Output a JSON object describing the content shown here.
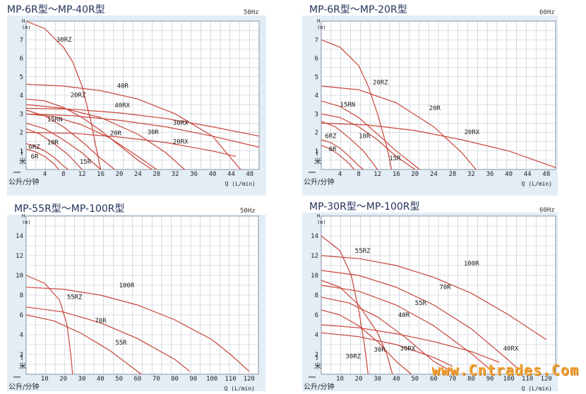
{
  "chart_data": [
    {
      "type": "line",
      "title": "MP-6R型～MP-40R型",
      "frequency": "50Hz",
      "ylabel": "H (m)",
      "ylabel_vertical": "米",
      "xlabel_left": "公升/分钟",
      "xlabel": "Q (L/min)",
      "xlim": [
        0,
        50
      ],
      "ylim": [
        0,
        8
      ],
      "xticks": [
        4,
        8,
        12,
        16,
        20,
        24,
        28,
        32,
        36,
        40,
        44,
        48
      ],
      "yticks": [
        1,
        2,
        3,
        4,
        5,
        6,
        7
      ],
      "grid": true,
      "series": [
        {
          "name": "30RZ",
          "x": [
            0,
            4,
            8,
            10,
            12,
            14,
            15,
            16
          ],
          "y": [
            8.0,
            7.6,
            6.6,
            5.8,
            4.5,
            2.5,
            1.2,
            0
          ]
        },
        {
          "name": "40R",
          "x": [
            0,
            8,
            16,
            24,
            32,
            40,
            46
          ],
          "y": [
            4.6,
            4.5,
            4.25,
            3.8,
            3.0,
            1.8,
            0
          ]
        },
        {
          "name": "40RX",
          "x": [
            0,
            10,
            20,
            30,
            40,
            50
          ],
          "y": [
            3.3,
            3.25,
            3.05,
            2.75,
            2.3,
            1.8
          ]
        },
        {
          "name": "30RX",
          "x": [
            0,
            10,
            20,
            30,
            40,
            50
          ],
          "y": [
            3.0,
            2.9,
            2.65,
            2.3,
            1.8,
            1.2
          ]
        },
        {
          "name": "30R",
          "x": [
            0,
            8,
            16,
            24,
            30,
            34
          ],
          "y": [
            3.5,
            3.3,
            2.8,
            1.9,
            0.9,
            0
          ]
        },
        {
          "name": "20RX",
          "x": [
            0,
            10,
            20,
            30,
            40,
            45
          ],
          "y": [
            2.0,
            1.95,
            1.75,
            1.45,
            1.0,
            0.7
          ]
        },
        {
          "name": "20RZ",
          "x": [
            0,
            4,
            8,
            12,
            16,
            20,
            24,
            27
          ],
          "y": [
            3.8,
            3.7,
            3.35,
            2.8,
            2.1,
            1.3,
            0.5,
            0
          ]
        },
        {
          "name": "20R",
          "x": [
            0,
            6,
            12,
            18,
            24,
            28
          ],
          "y": [
            3.0,
            2.85,
            2.4,
            1.7,
            0.7,
            0
          ]
        },
        {
          "name": "15RN",
          "x": [
            0,
            4,
            8,
            12,
            16,
            19
          ],
          "y": [
            3.2,
            2.9,
            2.3,
            1.5,
            0.6,
            0
          ]
        },
        {
          "name": "15R",
          "x": [
            0,
            4,
            8,
            12,
            16
          ],
          "y": [
            2.5,
            2.2,
            1.6,
            0.9,
            0
          ]
        },
        {
          "name": "10R",
          "x": [
            0,
            3,
            6,
            9,
            12
          ],
          "y": [
            2.2,
            1.9,
            1.4,
            0.8,
            0
          ]
        },
        {
          "name": "6RZ",
          "x": [
            0,
            2,
            4,
            6,
            8,
            9
          ],
          "y": [
            1.4,
            1.25,
            1.0,
            0.65,
            0.2,
            0
          ]
        },
        {
          "name": "6R",
          "x": [
            0,
            2,
            4,
            6,
            7
          ],
          "y": [
            1.1,
            0.95,
            0.7,
            0.3,
            0
          ]
        }
      ],
      "curve_labels": [
        {
          "text": "30RZ",
          "x": 6.5,
          "y": 6.9
        },
        {
          "text": "40R",
          "x": 19.5,
          "y": 4.4
        },
        {
          "text": "40RX",
          "x": 19,
          "y": 3.35
        },
        {
          "text": "20RZ",
          "x": 9.5,
          "y": 3.9
        },
        {
          "text": "15RN",
          "x": 4.5,
          "y": 2.6
        },
        {
          "text": "10R",
          "x": 4.5,
          "y": 1.35
        },
        {
          "text": "6RZ",
          "x": 0.5,
          "y": 1.1
        },
        {
          "text": "6R",
          "x": 1.0,
          "y": 0.6
        },
        {
          "text": "15R",
          "x": 11.5,
          "y": 0.3
        },
        {
          "text": "20R",
          "x": 18,
          "y": 1.85
        },
        {
          "text": "30R",
          "x": 26,
          "y": 1.9
        },
        {
          "text": "30RX",
          "x": 31.5,
          "y": 2.4
        },
        {
          "text": "20RX",
          "x": 31.5,
          "y": 1.4
        }
      ]
    },
    {
      "type": "line",
      "title": "MP-6R型～MP-20R型",
      "frequency": "60Hz",
      "ylabel": "H (m)",
      "ylabel_vertical": "米",
      "xlabel_left": "公升/分钟",
      "xlabel": "Q (L/min)",
      "xlim": [
        0,
        50
      ],
      "ylim": [
        0,
        8
      ],
      "xticks": [
        4,
        8,
        12,
        16,
        20,
        24,
        28,
        32,
        36,
        40,
        44,
        48
      ],
      "yticks": [
        1,
        2,
        3,
        4,
        5,
        6,
        7
      ],
      "grid": true,
      "series": [
        {
          "name": "20RZ",
          "x": [
            0,
            4,
            8,
            10,
            12,
            14,
            15
          ],
          "y": [
            7.0,
            6.6,
            5.6,
            4.5,
            3.0,
            1.2,
            0
          ]
        },
        {
          "name": "20R",
          "x": [
            0,
            8,
            16,
            24,
            30,
            33
          ],
          "y": [
            4.5,
            4.3,
            3.6,
            2.3,
            0.9,
            0
          ]
        },
        {
          "name": "20RX",
          "x": [
            0,
            10,
            20,
            30,
            40,
            50
          ],
          "y": [
            2.5,
            2.4,
            2.1,
            1.6,
            1.0,
            0.1
          ]
        },
        {
          "name": "15RN",
          "x": [
            0,
            4,
            8,
            12,
            16,
            21
          ],
          "y": [
            3.7,
            3.4,
            2.8,
            1.9,
            1.0,
            0
          ]
        },
        {
          "name": "15R",
          "x": [
            0,
            4,
            8,
            12,
            16,
            20
          ],
          "y": [
            3.0,
            2.8,
            2.3,
            1.6,
            0.7,
            0
          ]
        },
        {
          "name": "10R",
          "x": [
            0,
            3,
            6,
            9,
            12
          ],
          "y": [
            2.6,
            2.3,
            1.7,
            1.0,
            0
          ]
        },
        {
          "name": "6RZ",
          "x": [
            0,
            2,
            4,
            6,
            8,
            9
          ],
          "y": [
            1.6,
            1.45,
            1.15,
            0.7,
            0.2,
            0
          ]
        },
        {
          "name": "6R",
          "x": [
            0,
            2,
            4,
            6,
            7
          ],
          "y": [
            1.3,
            1.1,
            0.75,
            0.3,
            0
          ]
        }
      ],
      "curve_labels": [
        {
          "text": "20RZ",
          "x": 11,
          "y": 4.6
        },
        {
          "text": "20R",
          "x": 23,
          "y": 3.2
        },
        {
          "text": "20RX",
          "x": 30.5,
          "y": 1.9
        },
        {
          "text": "15RN",
          "x": 4,
          "y": 3.4
        },
        {
          "text": "10R",
          "x": 8,
          "y": 1.7
        },
        {
          "text": "15R",
          "x": 14.5,
          "y": 0.5
        },
        {
          "text": "6RZ",
          "x": 0.8,
          "y": 1.7
        },
        {
          "text": "6R",
          "x": 1.6,
          "y": 1.0
        }
      ]
    },
    {
      "type": "line",
      "title": "MP-55R型～MP-100R型",
      "frequency": "50Hz",
      "ylabel": "H (m)",
      "ylabel_vertical": "米",
      "xlabel_left": "公升/分钟",
      "xlabel": "Q (L/min)",
      "xlim": [
        0,
        125
      ],
      "ylim": [
        0,
        16
      ],
      "xticks": [
        10,
        20,
        30,
        40,
        50,
        60,
        70,
        80,
        90,
        100,
        110,
        120
      ],
      "yticks": [
        2,
        4,
        6,
        8,
        10,
        12,
        14
      ],
      "grid": true,
      "series": [
        {
          "name": "55RZ",
          "x": [
            0,
            10,
            18,
            22,
            24,
            25
          ],
          "y": [
            10.0,
            9.2,
            7.5,
            5.0,
            2.0,
            0
          ]
        },
        {
          "name": "100R",
          "x": [
            0,
            20,
            40,
            60,
            80,
            100,
            110,
            120
          ],
          "y": [
            8.8,
            8.6,
            8.0,
            7.0,
            5.5,
            3.5,
            2.0,
            0.3
          ]
        },
        {
          "name": "70R",
          "x": [
            0,
            20,
            40,
            60,
            80,
            88
          ],
          "y": [
            6.8,
            6.3,
            5.2,
            3.6,
            1.5,
            0.3
          ]
        },
        {
          "name": "55R",
          "x": [
            0,
            15,
            30,
            45,
            62
          ],
          "y": [
            6.0,
            5.4,
            4.1,
            2.4,
            0
          ]
        }
      ],
      "curve_labels": [
        {
          "text": "55RZ",
          "x": 22,
          "y": 7.6
        },
        {
          "text": "100R",
          "x": 50,
          "y": 8.8
        },
        {
          "text": "70R",
          "x": 37,
          "y": 5.2
        },
        {
          "text": "55R",
          "x": 48,
          "y": 3.0
        }
      ]
    },
    {
      "type": "line",
      "title": "MP-30R型～MP-100R型",
      "frequency": "60Hz",
      "ylabel": "H (m)",
      "ylabel_vertical": "米",
      "xlabel_left": "公升/分钟",
      "xlabel": "Q (L/min)",
      "xlim": [
        0,
        125
      ],
      "ylim": [
        0,
        16
      ],
      "xticks": [
        10,
        20,
        30,
        40,
        50,
        60,
        70,
        80,
        90,
        100,
        110,
        120
      ],
      "yticks": [
        2,
        4,
        6,
        8,
        10,
        12,
        14
      ],
      "grid": true,
      "series": [
        {
          "name": "55RZ",
          "x": [
            0,
            10,
            16,
            20,
            23,
            25
          ],
          "y": [
            14.0,
            12.5,
            10.0,
            6.5,
            3.0,
            0
          ]
        },
        {
          "name": "100R",
          "x": [
            0,
            20,
            40,
            60,
            80,
            100,
            120
          ],
          "y": [
            12.0,
            11.7,
            11.0,
            9.8,
            8.2,
            6.0,
            3.5
          ]
        },
        {
          "name": "70R",
          "x": [
            0,
            20,
            40,
            60,
            80,
            100,
            105
          ],
          "y": [
            10.5,
            10.0,
            8.8,
            7.0,
            4.6,
            1.4,
            0.5
          ]
        },
        {
          "name": "55R",
          "x": [
            0,
            20,
            40,
            60,
            80,
            90
          ],
          "y": [
            9.0,
            8.4,
            7.0,
            4.9,
            2.1,
            0.5
          ]
        },
        {
          "name": "40R",
          "x": [
            0,
            15,
            30,
            45,
            60,
            72
          ],
          "y": [
            7.8,
            7.2,
            5.8,
            3.7,
            1.3,
            0
          ]
        },
        {
          "name": "40RX",
          "x": [
            0,
            20,
            40,
            60,
            80,
            95
          ],
          "y": [
            5.0,
            4.7,
            4.1,
            3.3,
            2.3,
            1.2
          ]
        },
        {
          "name": "30RX",
          "x": [
            0,
            20,
            40,
            60,
            70
          ],
          "y": [
            4.2,
            3.8,
            3.0,
            1.7,
            0.8
          ]
        },
        {
          "name": "30R",
          "x": [
            0,
            10,
            20,
            30,
            40,
            48
          ],
          "y": [
            6.5,
            6.0,
            4.9,
            3.3,
            1.3,
            0
          ]
        },
        {
          "name": "30RZ",
          "x": [
            0,
            10,
            20,
            30,
            35,
            38
          ],
          "y": [
            9.5,
            8.8,
            7.0,
            4.2,
            2.0,
            0
          ]
        }
      ],
      "curve_labels": [
        {
          "text": "55RZ",
          "x": 18,
          "y": 12.3
        },
        {
          "text": "100R",
          "x": 76,
          "y": 11.0
        },
        {
          "text": "70R",
          "x": 63,
          "y": 8.6
        },
        {
          "text": "55R",
          "x": 50,
          "y": 7.0
        },
        {
          "text": "40R",
          "x": 41,
          "y": 5.8
        },
        {
          "text": "40RX",
          "x": 97,
          "y": 2.4
        },
        {
          "text": "30RX",
          "x": 42,
          "y": 2.4
        },
        {
          "text": "30R",
          "x": 28,
          "y": 2.3
        },
        {
          "text": "30RZ",
          "x": 13,
          "y": 1.6
        }
      ]
    }
  ],
  "watermark": "www.Cntrades.Com"
}
